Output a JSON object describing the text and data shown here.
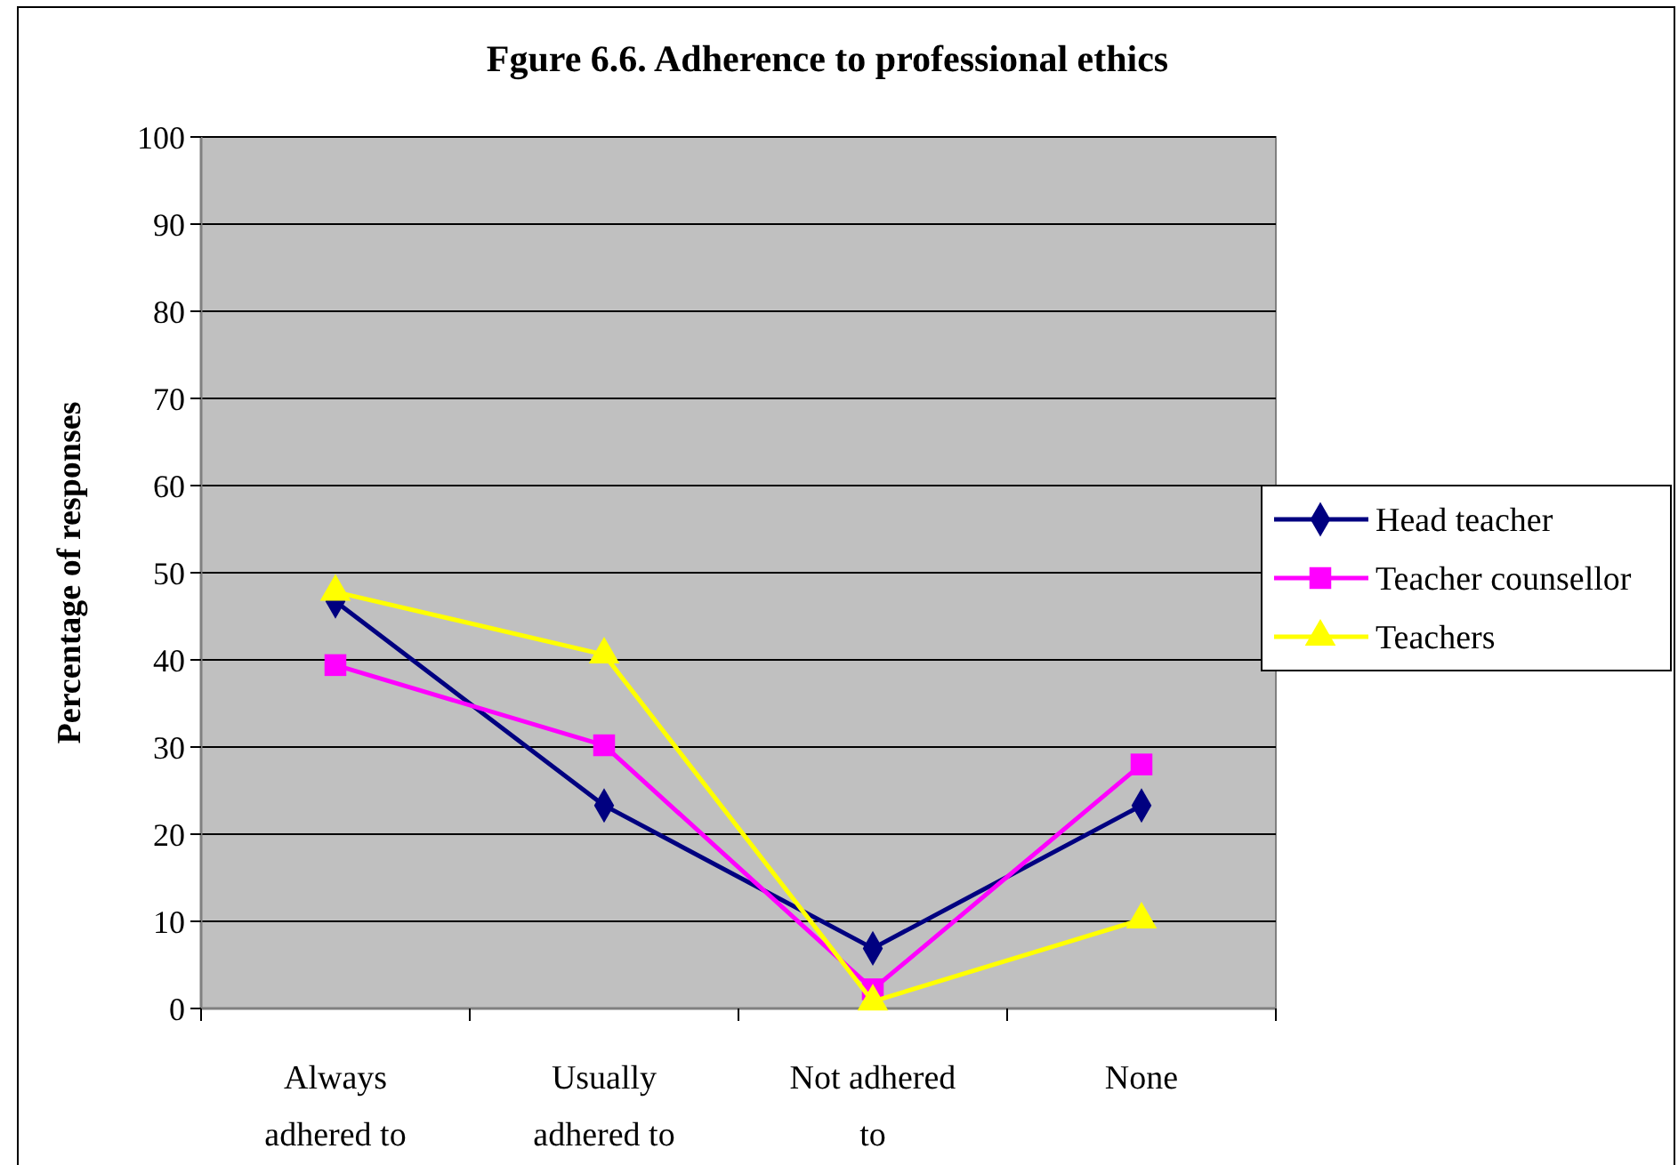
{
  "chart_data": {
    "type": "line",
    "title": "Fgure 6.6. Adherence to professional ethics",
    "ylabel": "Percentage of responses",
    "categories": [
      "Always adhered to",
      "Usually adhered to",
      "Not adhered to",
      "None"
    ],
    "series": [
      {
        "name": "Head teacher",
        "color": "#000080",
        "marker": "diamond",
        "values": [
          46.7,
          23.3,
          6.9,
          23.3
        ]
      },
      {
        "name": "Teacher counsellor",
        "color": "#ff00ff",
        "marker": "square",
        "values": [
          39.4,
          30.2,
          2.2,
          28
        ]
      },
      {
        "name": "Teachers",
        "color": "#ffff00",
        "marker": "triangle",
        "values": [
          47.8,
          40.6,
          0.8,
          10.2
        ]
      }
    ],
    "ylim": [
      0,
      100
    ],
    "yticks": [
      0,
      10,
      20,
      30,
      40,
      50,
      60,
      70,
      80,
      90,
      100
    ],
    "grid": "y",
    "legend": "right",
    "line_style": "solid"
  }
}
